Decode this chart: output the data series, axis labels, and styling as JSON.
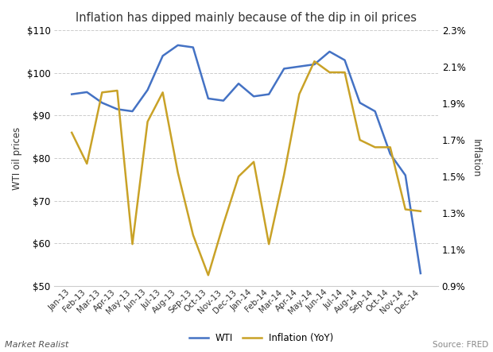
{
  "title": "Inflation has dipped mainly because of the dip in oil prices",
  "x_labels": [
    "Jan-13",
    "Feb-13",
    "Mar-13",
    "Apr-13",
    "May-13",
    "Jun-13",
    "Jul-13",
    "Aug-13",
    "Sep-13",
    "Oct-13",
    "Nov-13",
    "Dec-13",
    "Jan-14",
    "Feb-14",
    "Mar-14",
    "Apr-14",
    "May-14",
    "Jun-14",
    "Jul-14",
    "Aug-14",
    "Sep-14",
    "Oct-14",
    "Nov-14",
    "Dec-14"
  ],
  "wti": [
    95.0,
    95.5,
    93.0,
    91.5,
    91.0,
    96.0,
    104.0,
    106.5,
    106.0,
    94.0,
    93.5,
    97.5,
    94.5,
    95.0,
    101.0,
    101.5,
    102.0,
    105.0,
    103.0,
    93.0,
    91.0,
    81.0,
    76.0,
    53.0
  ],
  "inflation": [
    1.74,
    1.57,
    1.96,
    1.97,
    1.13,
    1.8,
    1.96,
    1.52,
    1.18,
    0.96,
    1.24,
    1.5,
    1.58,
    1.13,
    1.51,
    1.95,
    2.13,
    2.07,
    2.07,
    1.7,
    1.66,
    1.66,
    1.32,
    1.31
  ],
  "wti_color": "#4472C4",
  "inflation_color": "#C9A227",
  "ylabel_left": "WTI oil prices",
  "ylabel_right": "Inflation",
  "ylim_left": [
    50,
    110
  ],
  "ylim_right": [
    0.9,
    2.3
  ],
  "yticks_left": [
    50,
    60,
    70,
    80,
    90,
    100,
    110
  ],
  "yticks_right": [
    0.9,
    1.1,
    1.3,
    1.5,
    1.7,
    1.9,
    2.1,
    2.3
  ],
  "background_color": "#ffffff",
  "plot_bg_color": "#ffffff",
  "grid_color": "#cccccc",
  "source_text": "Source: FRED",
  "watermark": "Market Realist"
}
